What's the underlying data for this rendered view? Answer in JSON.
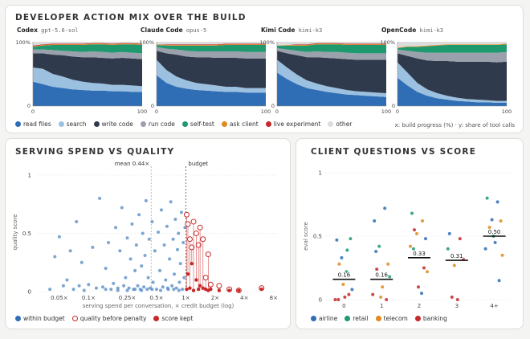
{
  "header": {
    "top_title": "DEVELOPER ACTION MIX OVER THE BUILD",
    "bl_title": "SERVING SPEND VS QUALITY",
    "br_title": "CLIENT QUESTIONS VS SCORE"
  },
  "colors": {
    "read files": "#2f6db5",
    "search": "#9cc0df",
    "write code": "#2f3a4c",
    "run code": "#9ba1ac",
    "self-test": "#1f9a6e",
    "ask client": "#e08a1e",
    "live experiment": "#c62828",
    "other": "#dcdcdc",
    "airline": "#2f6db5",
    "retail": "#1f9a6e",
    "telecom": "#e08a1e",
    "banking": "#c62828"
  },
  "top_note": "x: build progress (%) · y: share of tool calls",
  "chart_data": [
    {
      "type": "area",
      "panels": [
        {
          "name": "Codex",
          "model": "gpt-5.6-sol"
        },
        {
          "name": "Claude Code",
          "model": "opus-5"
        },
        {
          "name": "Kimi Code",
          "model": "kimi-k3"
        },
        {
          "name": "OpenCode",
          "model": "kimi-k3"
        }
      ],
      "series": [
        "read files",
        "search",
        "write code",
        "run code",
        "self-test",
        "ask client",
        "live experiment",
        "other"
      ],
      "x_ticks": [
        "0",
        "100"
      ],
      "y_ticks": [
        "100%",
        "0"
      ],
      "xlim": [
        0,
        100
      ],
      "ylim": [
        0,
        100
      ],
      "shares": [
        [
          [
            38,
            34,
            30,
            28,
            26,
            25,
            24,
            24,
            23,
            23,
            22,
            22
          ],
          [
            22,
            24,
            20,
            18,
            15,
            13,
            12,
            11,
            10,
            10,
            10,
            9
          ],
          [
            22,
            24,
            30,
            33,
            36,
            38,
            40,
            40,
            41,
            42,
            42,
            42
          ],
          [
            6,
            6,
            7,
            7,
            8,
            8,
            9,
            9,
            9,
            9,
            9,
            9
          ],
          [
            4,
            6,
            8,
            9,
            10,
            11,
            11,
            12,
            12,
            12,
            13,
            13
          ],
          [
            1,
            1,
            1,
            1,
            1,
            1,
            1,
            1,
            1,
            1,
            1,
            1
          ],
          [
            1,
            1,
            1,
            1,
            1,
            1,
            1,
            1,
            1,
            1,
            1,
            1
          ],
          [
            6,
            4,
            3,
            3,
            3,
            3,
            2,
            2,
            3,
            2,
            2,
            3
          ]
        ],
        [
          [
            48,
            36,
            30,
            27,
            25,
            24,
            23,
            22,
            22,
            21,
            21,
            21
          ],
          [
            24,
            20,
            16,
            13,
            11,
            10,
            9,
            8,
            8,
            7,
            7,
            7
          ],
          [
            14,
            26,
            34,
            37,
            40,
            42,
            43,
            45,
            45,
            46,
            46,
            46
          ],
          [
            6,
            7,
            8,
            9,
            9,
            9,
            10,
            10,
            10,
            10,
            10,
            10
          ],
          [
            3,
            5,
            6,
            8,
            9,
            9,
            9,
            10,
            10,
            11,
            11,
            11
          ],
          [
            1,
            1,
            1,
            1,
            1,
            1,
            1,
            1,
            1,
            1,
            1,
            1
          ],
          [
            0,
            1,
            1,
            1,
            1,
            1,
            1,
            1,
            1,
            1,
            1,
            1
          ],
          [
            4,
            4,
            4,
            4,
            4,
            4,
            4,
            3,
            3,
            3,
            3,
            3
          ]
        ],
        [
          [
            52,
            42,
            34,
            28,
            25,
            22,
            20,
            18,
            17,
            16,
            15,
            14
          ],
          [
            20,
            18,
            15,
            12,
            10,
            9,
            8,
            7,
            6,
            6,
            6,
            6
          ],
          [
            14,
            22,
            30,
            36,
            41,
            44,
            46,
            48,
            49,
            50,
            51,
            52
          ],
          [
            4,
            6,
            7,
            8,
            9,
            9,
            10,
            10,
            10,
            10,
            10,
            10
          ],
          [
            4,
            6,
            8,
            10,
            11,
            12,
            12,
            12,
            13,
            13,
            13,
            13
          ],
          [
            0,
            1,
            1,
            1,
            1,
            1,
            1,
            1,
            1,
            1,
            1,
            1
          ],
          [
            0,
            0,
            1,
            1,
            1,
            1,
            1,
            1,
            1,
            1,
            1,
            1
          ],
          [
            6,
            5,
            4,
            4,
            2,
            2,
            2,
            3,
            3,
            3,
            3,
            3
          ]
        ],
        [
          [
            44,
            32,
            22,
            16,
            12,
            10,
            8,
            7,
            6,
            6,
            5,
            5
          ],
          [
            24,
            20,
            14,
            10,
            8,
            6,
            5,
            4,
            4,
            3,
            3,
            3
          ],
          [
            14,
            26,
            38,
            45,
            50,
            54,
            56,
            58,
            59,
            60,
            60,
            61
          ],
          [
            6,
            8,
            10,
            12,
            13,
            13,
            14,
            14,
            14,
            14,
            15,
            15
          ],
          [
            2,
            6,
            8,
            10,
            11,
            12,
            12,
            12,
            12,
            12,
            12,
            12
          ],
          [
            1,
            1,
            1,
            1,
            1,
            1,
            1,
            1,
            1,
            1,
            1,
            1
          ],
          [
            0,
            0,
            0,
            0,
            0,
            0,
            0,
            0,
            0,
            0,
            0,
            0
          ],
          [
            9,
            7,
            7,
            6,
            5,
            4,
            4,
            4,
            4,
            4,
            4,
            3
          ]
        ]
      ]
    },
    {
      "type": "scatter",
      "xlabel": "serving spend per conversation, × credit budget (log)",
      "ylabel": "quality score",
      "x_ticks": [
        0.05,
        0.1,
        0.25,
        0.5,
        1,
        2,
        4,
        8
      ],
      "x_tick_labels": [
        "0.05×",
        "0.1×",
        "0.25×",
        "0.5×",
        "1×",
        "2×",
        "4×",
        "8×"
      ],
      "xlim": [
        0.03,
        9
      ],
      "y_ticks": [
        0,
        0.5,
        1
      ],
      "y_tick_labels": [
        "0",
        "0.5",
        "1"
      ],
      "ylim": [
        0,
        1.02
      ],
      "annotations": [
        {
          "x": 0.44,
          "label": "mean 0.44×"
        },
        {
          "x": 1,
          "label": "budget"
        }
      ],
      "within_budget": [
        [
          0.04,
          0.02
        ],
        [
          0.045,
          0.3
        ],
        [
          0.05,
          0.47
        ],
        [
          0.055,
          0.05
        ],
        [
          0.06,
          0.1
        ],
        [
          0.065,
          0.35
        ],
        [
          0.07,
          0.02
        ],
        [
          0.075,
          0.6
        ],
        [
          0.08,
          0.05
        ],
        [
          0.085,
          0.25
        ],
        [
          0.09,
          0.01
        ],
        [
          0.1,
          0.06
        ],
        [
          0.11,
          0.38
        ],
        [
          0.12,
          0.03
        ],
        [
          0.13,
          0.8
        ],
        [
          0.14,
          0.04
        ],
        [
          0.15,
          0.2
        ],
        [
          0.16,
          0.42
        ],
        [
          0.17,
          0.02
        ],
        [
          0.18,
          0.07
        ],
        [
          0.19,
          0.55
        ],
        [
          0.2,
          0.01
        ],
        [
          0.21,
          0.35
        ],
        [
          0.22,
          0.72
        ],
        [
          0.23,
          0.05
        ],
        [
          0.24,
          0.12
        ],
        [
          0.25,
          0.46
        ],
        [
          0.26,
          0.03
        ],
        [
          0.27,
          0.28
        ],
        [
          0.28,
          0.58
        ],
        [
          0.29,
          0.02
        ],
        [
          0.3,
          0.18
        ],
        [
          0.31,
          0.4
        ],
        [
          0.32,
          0.05
        ],
        [
          0.33,
          0.66
        ],
        [
          0.34,
          0.02
        ],
        [
          0.35,
          0.22
        ],
        [
          0.36,
          0.5
        ],
        [
          0.37,
          0.04
        ],
        [
          0.38,
          0.31
        ],
        [
          0.39,
          0.78
        ],
        [
          0.4,
          0.02
        ],
        [
          0.41,
          0.12
        ],
        [
          0.42,
          0.45
        ],
        [
          0.43,
          0.03
        ],
        [
          0.45,
          0.6
        ],
        [
          0.46,
          0.08
        ],
        [
          0.48,
          0.35
        ],
        [
          0.5,
          0.02
        ],
        [
          0.52,
          0.51
        ],
        [
          0.54,
          0.18
        ],
        [
          0.56,
          0.7
        ],
        [
          0.58,
          0.04
        ],
        [
          0.6,
          0.4
        ],
        [
          0.62,
          0.1
        ],
        [
          0.64,
          0.56
        ],
        [
          0.66,
          0.02
        ],
        [
          0.68,
          0.28
        ],
        [
          0.7,
          0.77
        ],
        [
          0.72,
          0.05
        ],
        [
          0.74,
          0.45
        ],
        [
          0.76,
          0.15
        ],
        [
          0.78,
          0.62
        ],
        [
          0.8,
          0.03
        ],
        [
          0.82,
          0.36
        ],
        [
          0.84,
          0.5
        ],
        [
          0.86,
          0.08
        ],
        [
          0.88,
          0.24
        ],
        [
          0.9,
          0.68
        ],
        [
          0.92,
          0.02
        ],
        [
          0.94,
          0.42
        ],
        [
          0.96,
          0.12
        ],
        [
          0.98,
          0.55
        ],
        [
          0.3,
          0.02
        ],
        [
          0.35,
          0.01
        ],
        [
          0.45,
          0.02
        ],
        [
          0.55,
          0.01
        ],
        [
          0.65,
          0.03
        ],
        [
          0.75,
          0.02
        ],
        [
          0.85,
          0.01
        ],
        [
          0.15,
          0.02
        ],
        [
          0.2,
          0.03
        ],
        [
          0.25,
          0.01
        ]
      ],
      "over_budget": [
        [
          1.02,
          0.66,
          0.02
        ],
        [
          1.05,
          0.58,
          0.15
        ],
        [
          1.1,
          0.45,
          0.03
        ],
        [
          1.15,
          0.38,
          0.24
        ],
        [
          1.2,
          0.6,
          0.01
        ],
        [
          1.28,
          0.5,
          0.1
        ],
        [
          1.35,
          0.4,
          0.02
        ],
        [
          1.4,
          0.55,
          0.05
        ],
        [
          1.5,
          0.45,
          0.03
        ],
        [
          1.6,
          0.12,
          0.02
        ],
        [
          1.7,
          0.32,
          0.01
        ],
        [
          1.8,
          0.06,
          0.02
        ],
        [
          2.2,
          0.05,
          0.01
        ],
        [
          2.8,
          0.02,
          0.01
        ],
        [
          3.5,
          0.01,
          0.01
        ],
        [
          6.0,
          0.03,
          0.02
        ]
      ]
    },
    {
      "type": "scatter",
      "xlabel": "",
      "ylabel": "eval score",
      "categories": [
        "0",
        "1",
        "2",
        "3",
        "4+"
      ],
      "y_ticks": [
        0,
        0.5,
        1
      ],
      "y_tick_labels": [
        "0",
        "0.5",
        "1"
      ],
      "ylim": [
        0,
        1
      ],
      "means": [
        0.16,
        0.16,
        0.33,
        0.31,
        0.5
      ],
      "mean_labels": [
        "0.16",
        "0.16",
        "0.33",
        "0.31",
        "0.50"
      ],
      "points": [
        {
          "c": 0,
          "d": "airline",
          "y": 0.47
        },
        {
          "c": 0,
          "d": "retail",
          "y": 0.39
        },
        {
          "c": 0,
          "d": "airline",
          "y": 0.33
        },
        {
          "c": 0,
          "d": "retail",
          "y": 0.48
        },
        {
          "c": 0,
          "d": "telecom",
          "y": 0.28
        },
        {
          "c": 0,
          "d": "banking",
          "y": 0.02
        },
        {
          "c": 0,
          "d": "banking",
          "y": 0.0
        },
        {
          "c": 0,
          "d": "banking",
          "y": 0.04
        },
        {
          "c": 0,
          "d": "telecom",
          "y": 0.12
        },
        {
          "c": 0,
          "d": "airline",
          "y": 0.08
        },
        {
          "c": 0,
          "d": "banking",
          "y": 0.0
        },
        {
          "c": 0,
          "d": "retail",
          "y": 0.22
        },
        {
          "c": 1,
          "d": "airline",
          "y": 0.62
        },
        {
          "c": 1,
          "d": "airline",
          "y": 0.72
        },
        {
          "c": 1,
          "d": "retail",
          "y": 0.42
        },
        {
          "c": 1,
          "d": "telecom",
          "y": 0.28
        },
        {
          "c": 1,
          "d": "banking",
          "y": 0.24
        },
        {
          "c": 1,
          "d": "telecom",
          "y": 0.1
        },
        {
          "c": 1,
          "d": "banking",
          "y": 0.04
        },
        {
          "c": 1,
          "d": "banking",
          "y": 0.0
        },
        {
          "c": 1,
          "d": "telecom",
          "y": 0.02
        },
        {
          "c": 1,
          "d": "retail",
          "y": 0.18
        },
        {
          "c": 1,
          "d": "airline",
          "y": 0.38
        },
        {
          "c": 2,
          "d": "retail",
          "y": 0.68
        },
        {
          "c": 2,
          "d": "telecom",
          "y": 0.62
        },
        {
          "c": 2,
          "d": "telecom",
          "y": 0.52
        },
        {
          "c": 2,
          "d": "airline",
          "y": 0.48
        },
        {
          "c": 2,
          "d": "banking",
          "y": 0.55
        },
        {
          "c": 2,
          "d": "airline",
          "y": 0.36
        },
        {
          "c": 2,
          "d": "telecom",
          "y": 0.42
        },
        {
          "c": 2,
          "d": "banking",
          "y": 0.25
        },
        {
          "c": 2,
          "d": "banking",
          "y": 0.1
        },
        {
          "c": 2,
          "d": "telecom",
          "y": 0.22
        },
        {
          "c": 2,
          "d": "retail",
          "y": 0.4
        },
        {
          "c": 2,
          "d": "airline",
          "y": 0.05
        },
        {
          "c": 3,
          "d": "airline",
          "y": 0.52
        },
        {
          "c": 3,
          "d": "banking",
          "y": 0.48
        },
        {
          "c": 3,
          "d": "telecom",
          "y": 0.27
        },
        {
          "c": 3,
          "d": "banking",
          "y": 0.32
        },
        {
          "c": 3,
          "d": "banking",
          "y": 0.02
        },
        {
          "c": 3,
          "d": "banking",
          "y": 0.0
        },
        {
          "c": 3,
          "d": "retail",
          "y": 0.4
        },
        {
          "c": 4,
          "d": "retail",
          "y": 0.8
        },
        {
          "c": 4,
          "d": "airline",
          "y": 0.77
        },
        {
          "c": 4,
          "d": "airline",
          "y": 0.63
        },
        {
          "c": 4,
          "d": "telecom",
          "y": 0.62
        },
        {
          "c": 4,
          "d": "telecom",
          "y": 0.57
        },
        {
          "c": 4,
          "d": "airline",
          "y": 0.45
        },
        {
          "c": 4,
          "d": "airline",
          "y": 0.4
        },
        {
          "c": 4,
          "d": "airline",
          "y": 0.15
        },
        {
          "c": 4,
          "d": "retail",
          "y": 0.5
        },
        {
          "c": 4,
          "d": "telecom",
          "y": 0.35
        }
      ]
    }
  ],
  "legends": {
    "top": [
      "read files",
      "search",
      "write code",
      "run code",
      "self-test",
      "ask client",
      "live experiment",
      "other"
    ],
    "bl": [
      {
        "label": "within budget"
      },
      {
        "label": "quality before penalty"
      },
      {
        "label": "score kept"
      }
    ],
    "br": [
      "airline",
      "retail",
      "telecom",
      "banking"
    ]
  }
}
